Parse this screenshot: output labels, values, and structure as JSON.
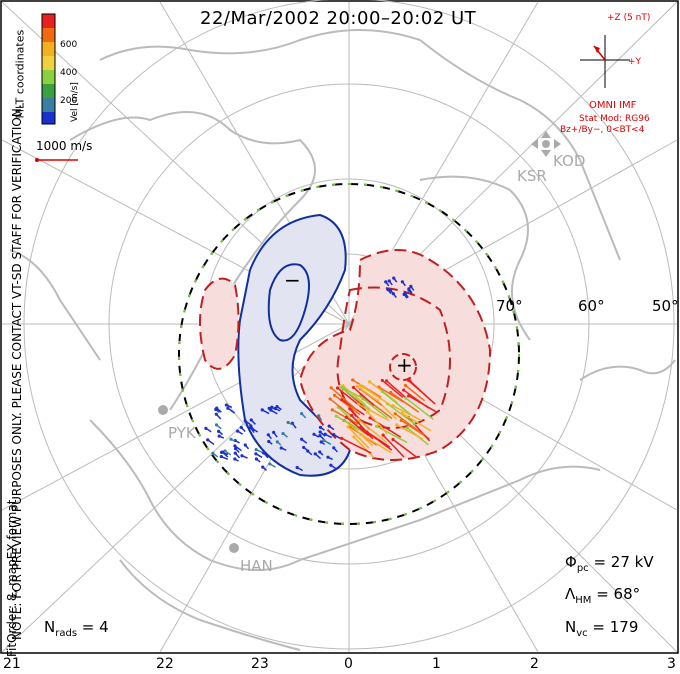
{
  "title": "22/Mar/2002 20:00–20:02 UT",
  "side_note": "NOTE: FOR PREVIEW PURPOSES ONLY. PLEASE CONTACT VT-SD STAFF FOR VERIFICATION.",
  "fit_order": "FitOrder: 8, mapEX format",
  "coords": "MLT coordinates",
  "colorbar": {
    "title": "Vel [m/s]",
    "ticks": [
      "600",
      "400",
      "200"
    ],
    "colors": [
      "#e82020",
      "#f06a10",
      "#f5b020",
      "#8ad040",
      "#3aa040",
      "#3a7ea0",
      "#1a30d0"
    ]
  },
  "scale": {
    "label": "1000 m/s"
  },
  "imf": {
    "header": "+Z (5 nT)",
    "y_label": "+Y",
    "source": "OMNI IMF",
    "model": "Stat Mod: RG96",
    "condition": "Bz+/By−, 0<BT<4"
  },
  "stations": [
    "KSR",
    "KOD",
    "PYK",
    "HAN"
  ],
  "lat_labels": [
    "70°",
    "60°",
    "50°"
  ],
  "mlt_ticks": [
    "21",
    "22",
    "23",
    "0",
    "1",
    "2",
    "3"
  ],
  "stats": {
    "phi_pc": "27 kV",
    "lambda_hm": "68°",
    "n_vc": "179",
    "n_rads": "4"
  },
  "contour_signs": {
    "neg": "−",
    "pos": "+"
  },
  "colors": {
    "neg_fill": "#e2e4f2",
    "pos_fill": "#f8dddd",
    "neg_line": "#1030a0",
    "pos_line": "#c02020",
    "boundary": "#7ac040"
  }
}
